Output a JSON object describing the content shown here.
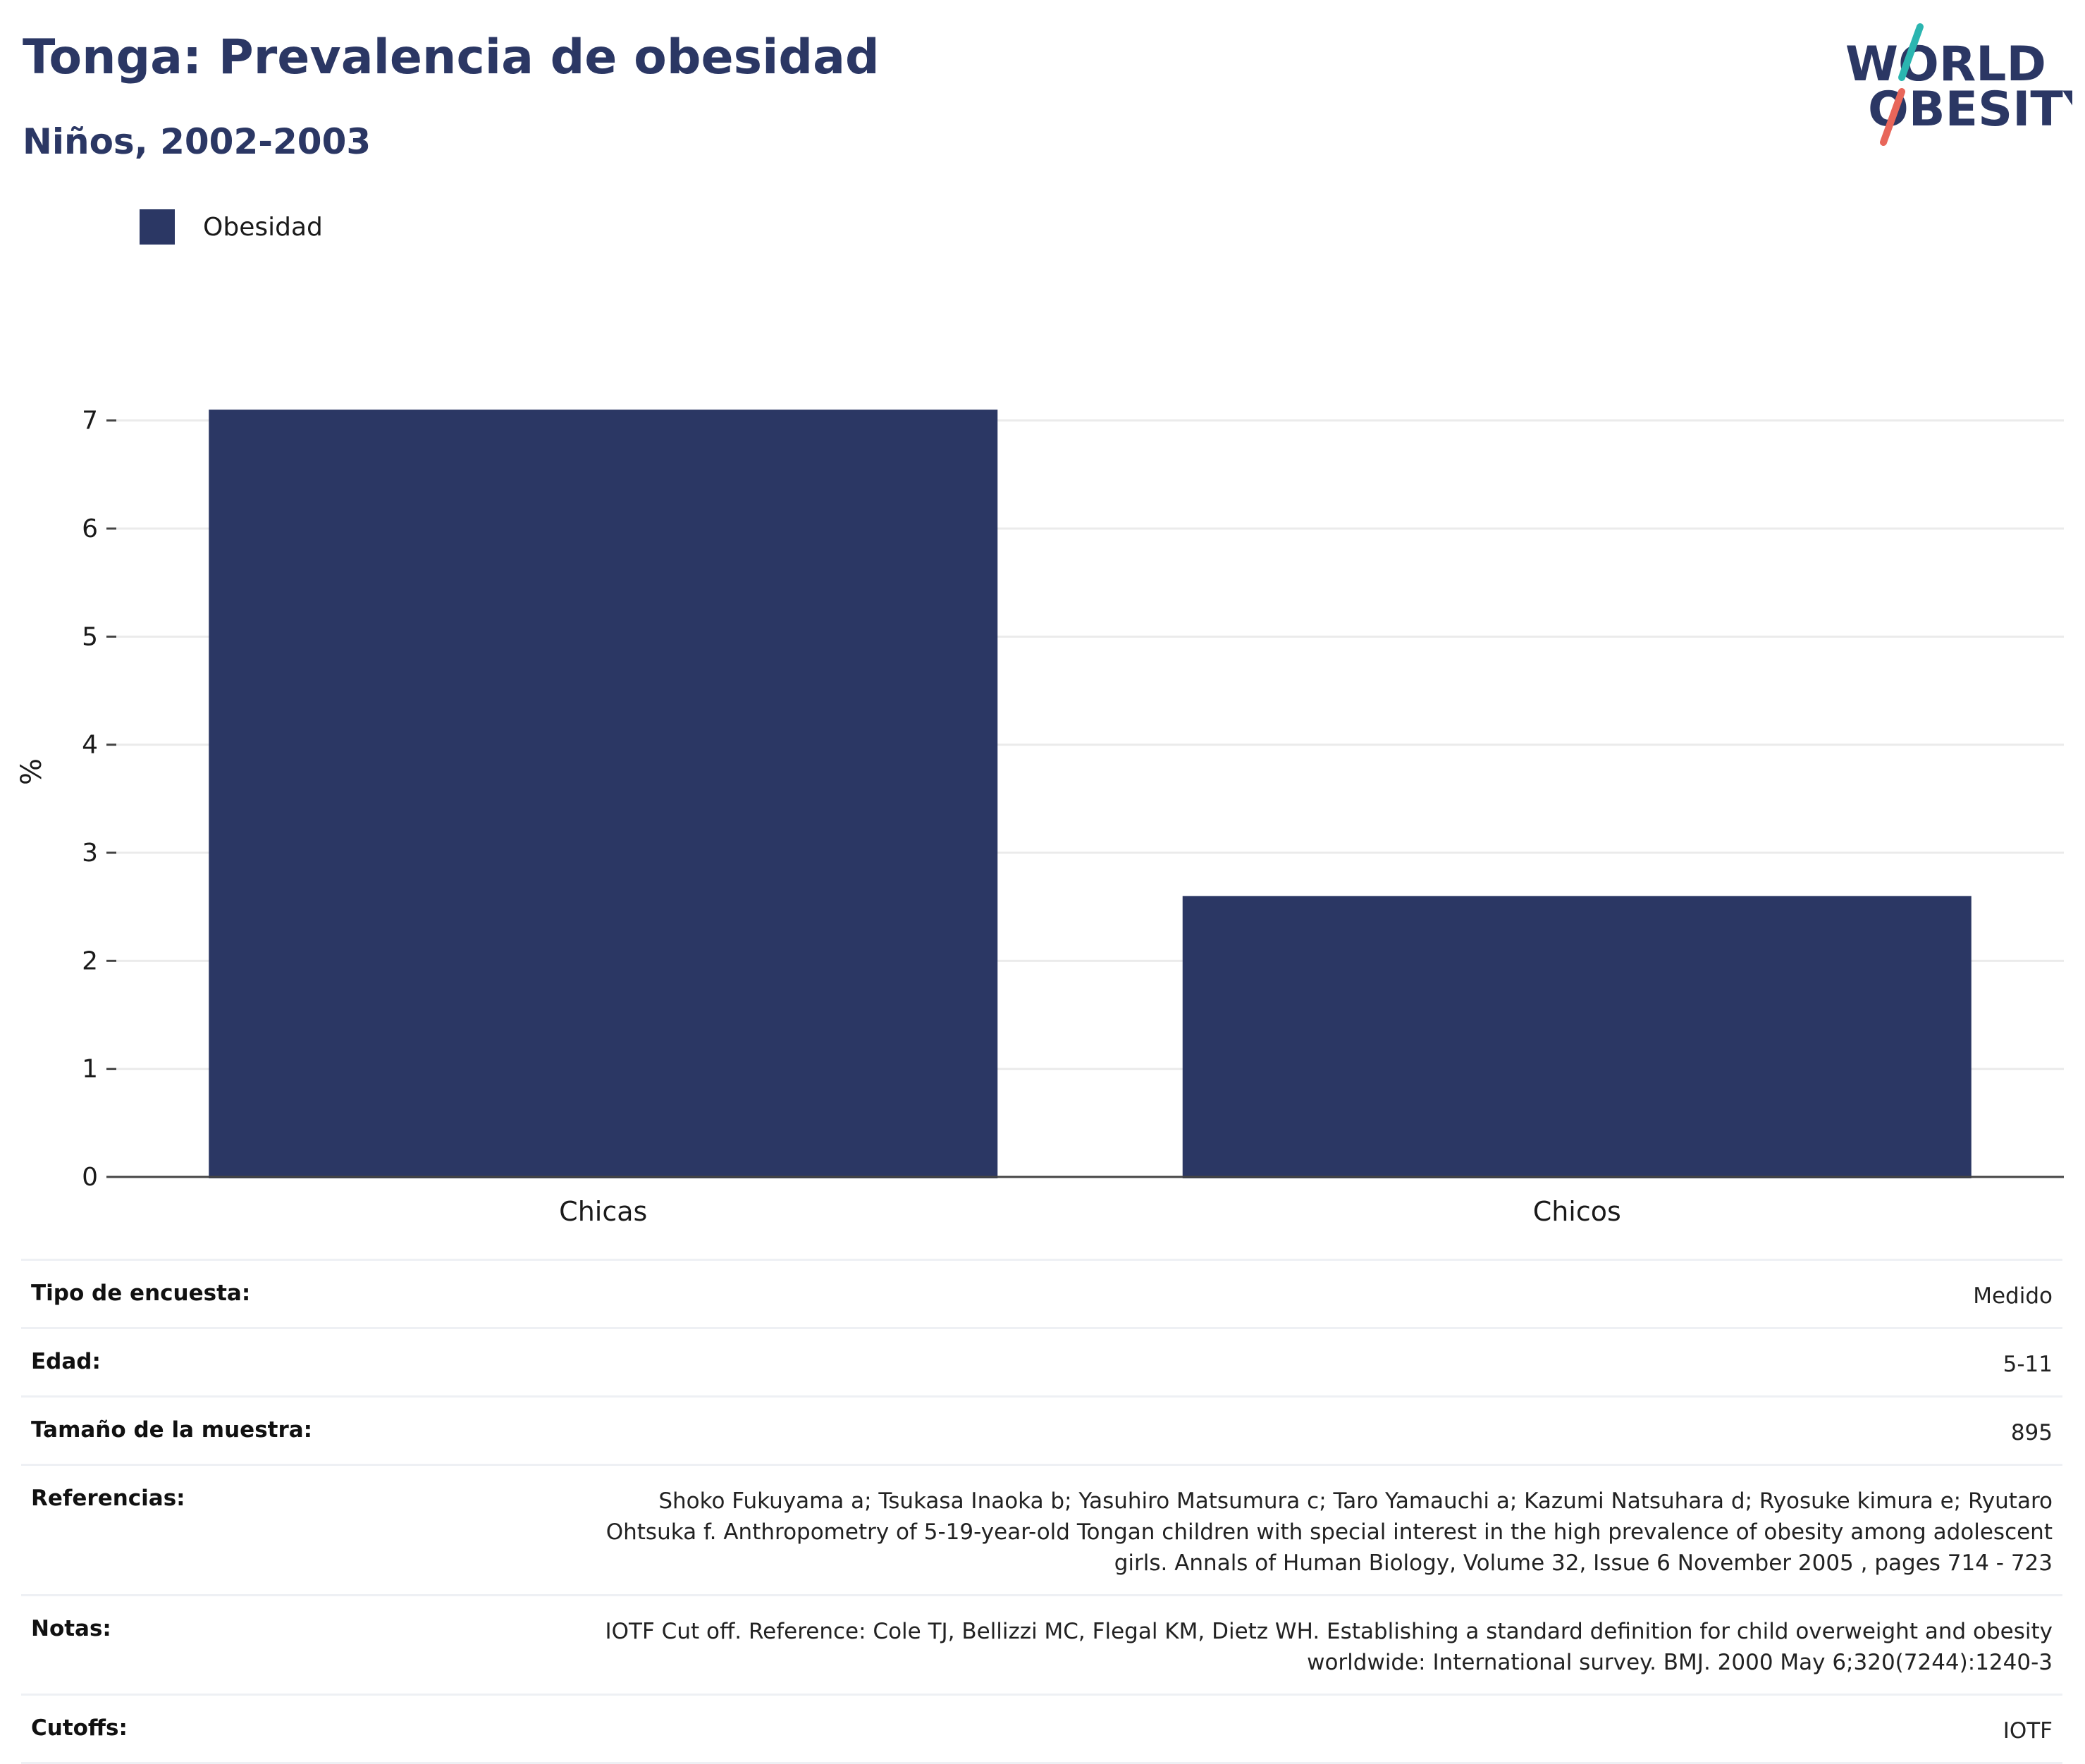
{
  "header": {
    "title": "Tonga: Prevalencia de obesidad",
    "subtitle": "Niños, 2002-2003"
  },
  "logo": {
    "line1": "WORLD",
    "line2": "OBESITY",
    "colors": {
      "text": "#2b3764",
      "slash_top": "#2bb5b0",
      "slash_bottom": "#e8665a"
    }
  },
  "colors": {
    "bar": "#2b3764",
    "grid": "#ebebeb",
    "axis": "#444444"
  },
  "chart_data": {
    "type": "bar",
    "categories": [
      "Chicas",
      "Chicos"
    ],
    "series": [
      {
        "name": "Obesidad",
        "values": [
          7.1,
          2.6
        ]
      }
    ],
    "ylabel": "%",
    "xlabel": "",
    "ylim": [
      0,
      7.5
    ],
    "yticks": [
      0,
      1,
      2,
      3,
      4,
      5,
      6,
      7
    ],
    "grid": true,
    "legend_position": "top-left"
  },
  "info": {
    "rows": [
      {
        "label": "Tipo de encuesta:",
        "value": "Medido"
      },
      {
        "label": "Edad:",
        "value": "5-11"
      },
      {
        "label": "Tamaño de la muestra:",
        "value": "895"
      },
      {
        "label": "Referencias:",
        "value": "Shoko Fukuyama a;  Tsukasa Inaoka b;  Yasuhiro Matsumura c;  Taro Yamauchi a;  Kazumi Natsuhara d;  Ryosuke kimura e; Ryutaro Ohtsuka f. Anthropometry of 5-19-year-old Tongan children with special interest in the high prevalence of obesity among adolescent girls. Annals of Human Biology, Volume 32, Issue 6 November 2005 , pages 714 - 723"
      },
      {
        "label": "Notas:",
        "value": "IOTF Cut off. Reference: Cole TJ, Bellizzi MC, Flegal KM, Dietz WH. Establishing a standard definition for child overweight and obesity worldwide: International survey. BMJ. 2000 May 6;320(7244):1240-3"
      },
      {
        "label": "Cutoffs:",
        "value": "IOTF"
      }
    ]
  }
}
